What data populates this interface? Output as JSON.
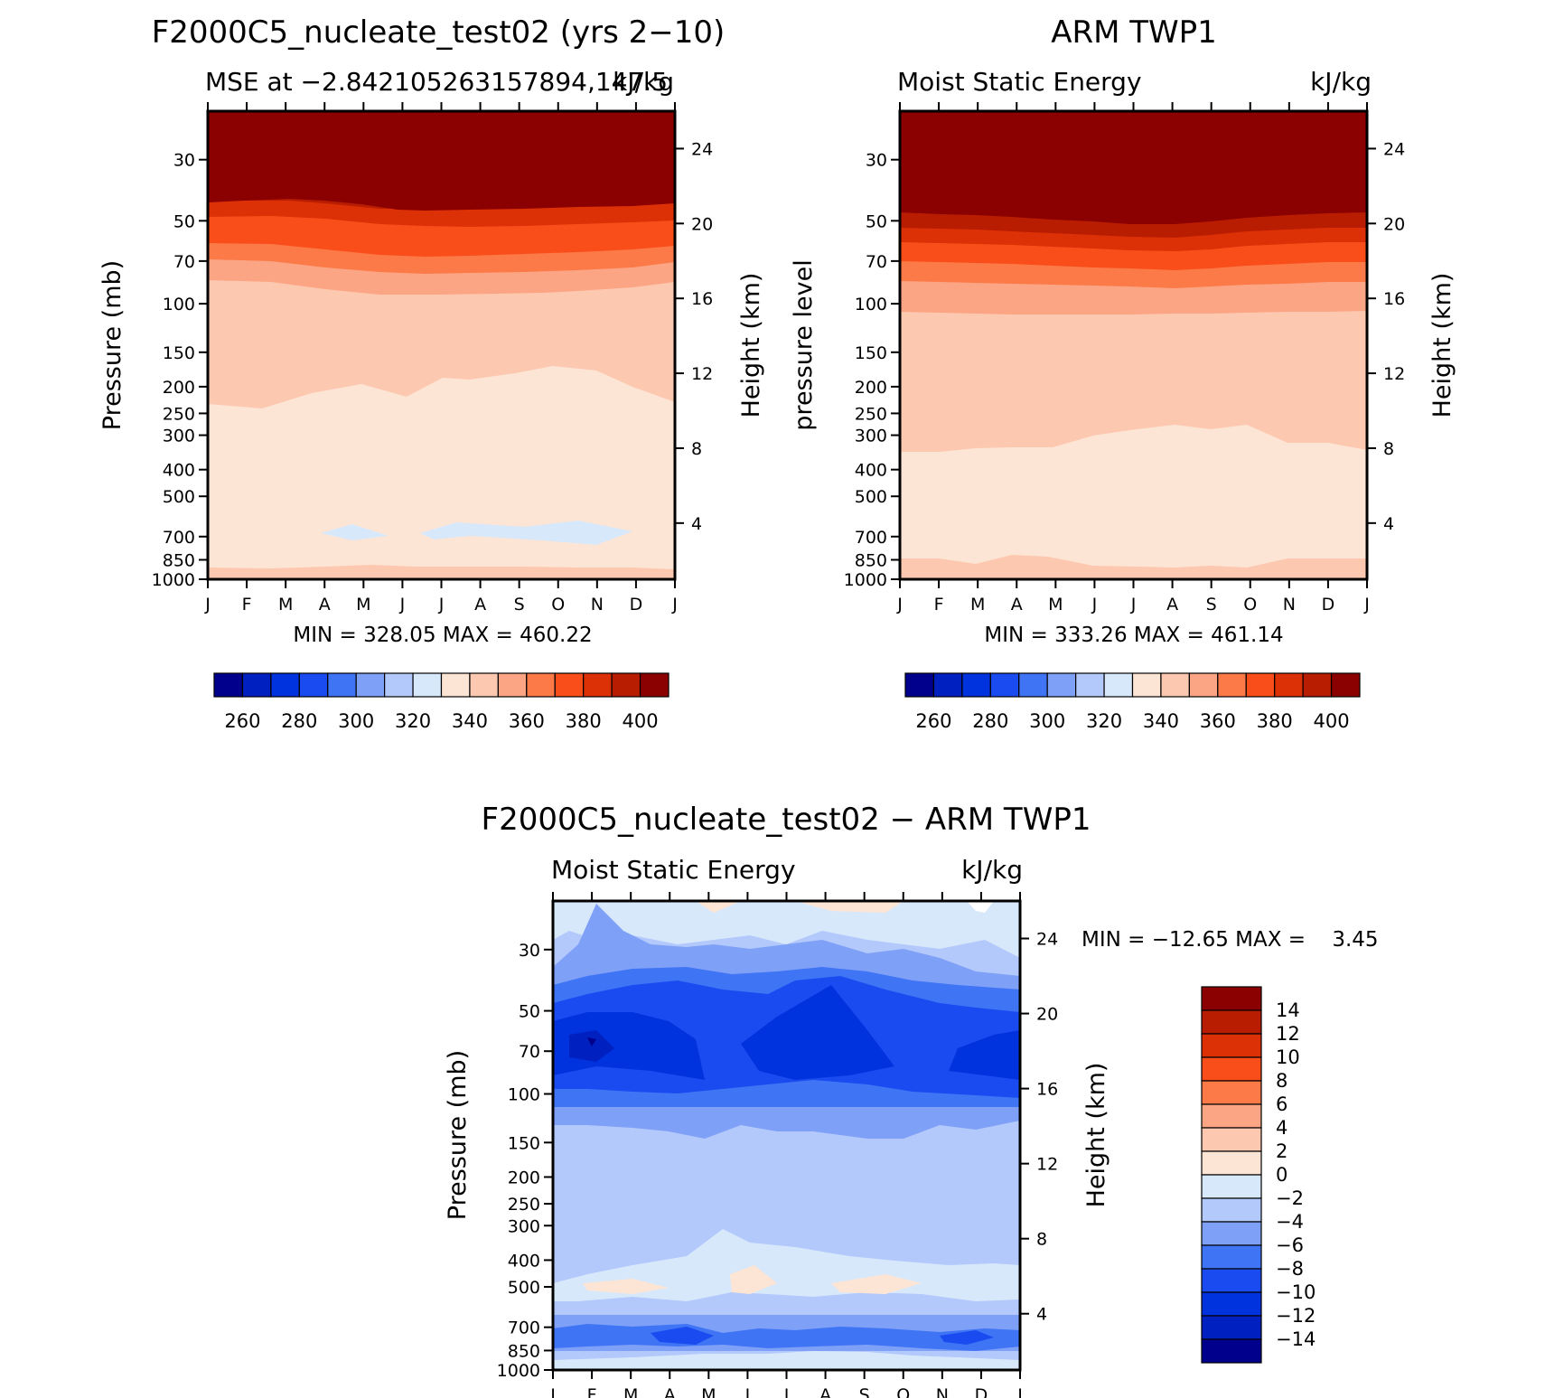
{
  "pressure_ticks": [
    "30",
    "50",
    "70",
    "100",
    "150",
    "200",
    "250",
    "300",
    "400",
    "500",
    "700",
    "850",
    "1000"
  ],
  "pressure_values": [
    30,
    50,
    70,
    100,
    150,
    200,
    250,
    300,
    400,
    500,
    700,
    850,
    1000
  ],
  "height_ticks": [
    "24",
    "20",
    "16",
    "12",
    "8",
    "4"
  ],
  "height_values": [
    24,
    20,
    16,
    12,
    8,
    4
  ],
  "month_ticks": [
    "J",
    "F",
    "M",
    "A",
    "M",
    "J",
    "J",
    "A",
    "S",
    "O",
    "N",
    "D",
    "J"
  ],
  "chart_data": [
    {
      "type": "heatmap",
      "title": "F2000C5_nucleate_test02 (yrs 2−10)",
      "subtitle_left": "MSE at −2.842105263157894,147.5",
      "subtitle_right": "kJ/kg",
      "xlabel": "",
      "ylabel": "Pressure (mb)",
      "ylabel_right": "Height (km)",
      "stats": "MIN = 328.05 MAX = 460.22",
      "x": [
        "J",
        "F",
        "M",
        "A",
        "M",
        "J",
        "J",
        "A",
        "S",
        "O",
        "N",
        "D",
        "J"
      ],
      "ylim": [
        1000,
        20
      ],
      "levels": [
        260,
        270,
        280,
        290,
        300,
        310,
        320,
        330,
        340,
        350,
        360,
        370,
        380,
        390,
        400
      ],
      "colorbar_labels": [
        "260",
        "280",
        "300",
        "320",
        "340",
        "360",
        "380",
        "400"
      ],
      "colors": [
        "#00008c",
        "#0020c0",
        "#0033dd",
        "#1a4bf0",
        "#3f74f5",
        "#7ea0f7",
        "#b3c8fb",
        "#d8e8fb",
        "#fde5d6",
        "#fdc8b0",
        "#fca584",
        "#fc7a48",
        "#fa4e1a",
        "#dc3007",
        "#b81d02",
        "#8b0000"
      ]
    },
    {
      "type": "heatmap",
      "title": "ARM TWP1",
      "subtitle_left": "Moist Static Energy",
      "subtitle_right": "kJ/kg",
      "xlabel": "",
      "ylabel": "pressure level",
      "ylabel_right": "Height (km)",
      "stats": "MIN = 333.26 MAX = 461.14",
      "x": [
        "J",
        "F",
        "M",
        "A",
        "M",
        "J",
        "J",
        "A",
        "S",
        "O",
        "N",
        "D",
        "J"
      ],
      "ylim": [
        1000,
        20
      ],
      "levels": [
        260,
        270,
        280,
        290,
        300,
        310,
        320,
        330,
        340,
        350,
        360,
        370,
        380,
        390,
        400
      ],
      "colorbar_labels": [
        "260",
        "280",
        "300",
        "320",
        "340",
        "360",
        "380",
        "400"
      ],
      "colors": [
        "#00008c",
        "#0020c0",
        "#0033dd",
        "#1a4bf0",
        "#3f74f5",
        "#7ea0f7",
        "#b3c8fb",
        "#d8e8fb",
        "#fde5d6",
        "#fdc8b0",
        "#fca584",
        "#fc7a48",
        "#fa4e1a",
        "#dc3007",
        "#b81d02",
        "#8b0000"
      ]
    },
    {
      "type": "heatmap",
      "title": "F2000C5_nucleate_test02 − ARM TWP1",
      "subtitle_left": "Moist Static Energy",
      "subtitle_right": "kJ/kg",
      "xlabel": "",
      "ylabel": "Pressure (mb)",
      "ylabel_right": "Height (km)",
      "stats": "MIN = −12.65 MAX =    3.45",
      "x": [
        "J",
        "F",
        "M",
        "A",
        "M",
        "J",
        "J",
        "A",
        "S",
        "O",
        "N",
        "D",
        "J"
      ],
      "ylim": [
        1000,
        20
      ],
      "levels": [
        -14,
        -12,
        -10,
        -8,
        -6,
        -4,
        -2,
        0,
        2,
        4,
        6,
        8,
        10,
        12,
        14
      ],
      "colorbar_labels": [
        "14",
        "12",
        "10",
        "8",
        "6",
        "4",
        "2",
        "0",
        "−2",
        "−4",
        "−6",
        "−8",
        "−10",
        "−12",
        "−14"
      ],
      "colors": [
        "#00008c",
        "#0020c0",
        "#0033dd",
        "#1a4bf0",
        "#3f74f5",
        "#7ea0f7",
        "#b3c8fb",
        "#d8e8fb",
        "#fde5d6",
        "#fdc8b0",
        "#fca584",
        "#fc7a48",
        "#fa4e1a",
        "#dc3007",
        "#b81d02",
        "#8b0000"
      ]
    }
  ]
}
